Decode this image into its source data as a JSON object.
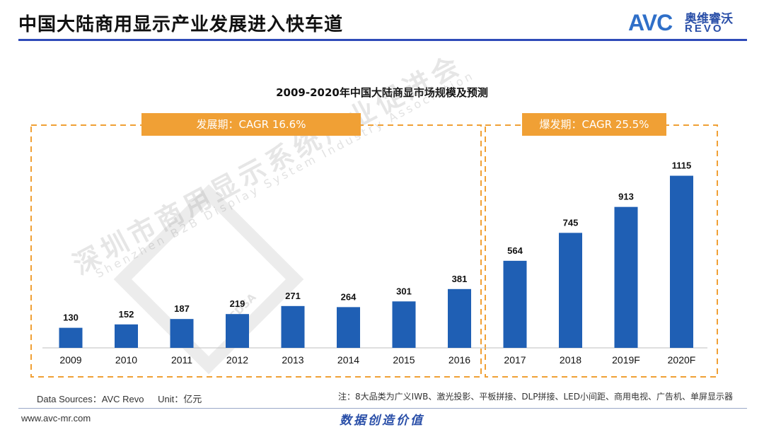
{
  "header": {
    "title": "中国大陆商用显示产业发展进入快车道",
    "logo": {
      "brand": "AVC",
      "cn": "奥维睿沃",
      "en": "REVO"
    }
  },
  "phases": [
    {
      "label": "发展期：CAGR 16.6%"
    },
    {
      "label": "爆发期：CAGR 25.5%"
    }
  ],
  "watermark": {
    "cn": "深圳市商用显示系统产业促进会",
    "en": "Shenzhen B2B Display System Industry Association",
    "mark": "CDSA"
  },
  "chart_data": {
    "type": "bar",
    "title": "2009-2020年中国大陆商显市场规模及预测",
    "categories": [
      "2009",
      "2010",
      "2011",
      "2012",
      "2013",
      "2014",
      "2015",
      "2016",
      "2017",
      "2018",
      "2019F",
      "2020F"
    ],
    "values": [
      130,
      152,
      187,
      219,
      271,
      264,
      301,
      381,
      564,
      745,
      913,
      1115
    ],
    "xlabel": "",
    "ylabel": "",
    "ylim": [
      0,
      1200
    ],
    "grid": false,
    "bar_color": "#1f5fb4",
    "accent_color": "#f0a035"
  },
  "footer": {
    "source_label": "Data Sources：AVC Revo",
    "unit_label": "Unit：亿元",
    "note": "注：8大品类为广义IWB、激光投影、平板拼接、DLP拼接、LED小间距、商用电视、广告机、单屏显示器",
    "website": "www.avc-mr.com",
    "slogan": "数据创造价值"
  }
}
